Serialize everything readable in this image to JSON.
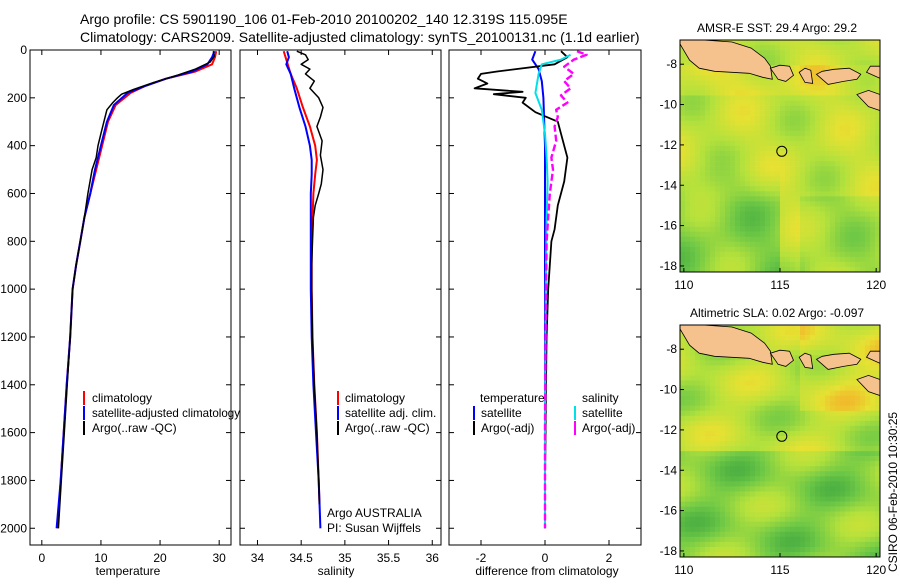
{
  "header": {
    "line1": "Argo profile: CS 5901190_106 01-Feb-2010 20100202_140 12.319S 115.095E",
    "line2": "Climatology: CARS2009. Satellite-adjusted climatology: synTS_20100131.nc (1.1d earlier)"
  },
  "side_stamp": "CSIRO 06-Feb-2010 10:30:25",
  "colors": {
    "climatology": "#ff0000",
    "satellite": "#0000ff",
    "argo": "#000000",
    "salinity_satellite": "#00e0e8",
    "salinity_argo": "#ff00ff",
    "land": "#f5c28e",
    "ocean": "#b4dc3c"
  },
  "chart_data": [
    {
      "type": "line",
      "name": "temperature-profile",
      "xlabel": "temperature",
      "xlim": [
        -2,
        32
      ],
      "ylim": [
        2070,
        0
      ],
      "xticks": [
        0,
        10,
        20,
        30
      ],
      "yticks": [
        0,
        200,
        400,
        600,
        800,
        1000,
        1200,
        1400,
        1600,
        1800,
        2000
      ],
      "legend": [
        "climatology",
        "satellite-adjusted climatology",
        "Argo(..raw -QC)"
      ],
      "series": [
        {
          "name": "climatology",
          "color": "#ff0000",
          "points": [
            [
              29.5,
              5
            ],
            [
              29.3,
              30
            ],
            [
              28.8,
              60
            ],
            [
              26,
              90
            ],
            [
              21,
              120
            ],
            [
              17.5,
              150
            ],
            [
              15,
              180
            ],
            [
              12.5,
              230
            ],
            [
              11.2,
              300
            ],
            [
              10.2,
              400
            ],
            [
              9.2,
              500
            ],
            [
              8.2,
              600
            ],
            [
              7.2,
              700
            ],
            [
              6.5,
              800
            ],
            [
              5.8,
              900
            ],
            [
              5.2,
              1000
            ],
            [
              4.8,
              1200
            ],
            [
              4.2,
              1400
            ],
            [
              3.7,
              1600
            ],
            [
              3.2,
              1800
            ],
            [
              2.7,
              2000
            ]
          ]
        },
        {
          "name": "satellite-adjusted climatology",
          "color": "#0000ff",
          "points": [
            [
              29.2,
              5
            ],
            [
              28.8,
              30
            ],
            [
              28,
              60
            ],
            [
              25.5,
              90
            ],
            [
              21,
              120
            ],
            [
              17.5,
              150
            ],
            [
              14.5,
              180
            ],
            [
              12.2,
              230
            ],
            [
              11,
              300
            ],
            [
              10,
              400
            ],
            [
              9,
              500
            ],
            [
              8.2,
              600
            ],
            [
              7.2,
              700
            ],
            [
              6.5,
              800
            ],
            [
              5.8,
              900
            ],
            [
              5.2,
              1000
            ],
            [
              4.8,
              1200
            ],
            [
              4.2,
              1400
            ],
            [
              3.7,
              1600
            ],
            [
              3.2,
              1800
            ],
            [
              2.5,
              2000
            ]
          ]
        },
        {
          "name": "Argo(..raw -QC)",
          "color": "#000000",
          "points": [
            [
              29,
              5
            ],
            [
              29.2,
              25
            ],
            [
              28.5,
              50
            ],
            [
              26,
              80
            ],
            [
              23,
              105
            ],
            [
              19,
              135
            ],
            [
              15.5,
              165
            ],
            [
              13.5,
              185
            ],
            [
              12.8,
              200
            ],
            [
              12,
              220
            ],
            [
              11,
              250
            ],
            [
              10.5,
              300
            ],
            [
              10,
              350
            ],
            [
              9.5,
              400
            ],
            [
              9.2,
              450
            ],
            [
              8.5,
              500
            ],
            [
              7.8,
              600
            ],
            [
              7.2,
              700
            ],
            [
              6.5,
              800
            ],
            [
              5.8,
              900
            ],
            [
              5.2,
              1000
            ],
            [
              4.8,
              1200
            ],
            [
              4.3,
              1400
            ],
            [
              3.8,
              1600
            ],
            [
              3.3,
              1800
            ],
            [
              2.8,
              2000
            ]
          ]
        }
      ]
    },
    {
      "type": "line",
      "name": "salinity-profile",
      "xlabel": "salinity",
      "xlim": [
        33.8,
        36.1
      ],
      "ylim": [
        2070,
        0
      ],
      "xticks": [
        34,
        34.5,
        35,
        35.5,
        36
      ],
      "legend": [
        "climatology",
        "satellite adj. clim.",
        "Argo(..raw -QC)"
      ],
      "annotation": [
        "Argo AUSTRALIA",
        "PI: Susan Wijffels"
      ],
      "series": [
        {
          "name": "climatology",
          "color": "#ff0000",
          "points": [
            [
              34.3,
              5
            ],
            [
              34.33,
              40
            ],
            [
              34.38,
              100
            ],
            [
              34.45,
              160
            ],
            [
              34.52,
              240
            ],
            [
              34.6,
              320
            ],
            [
              34.66,
              400
            ],
            [
              34.68,
              460
            ],
            [
              34.66,
              520
            ],
            [
              34.64,
              600
            ],
            [
              34.62,
              800
            ],
            [
              34.62,
              1000
            ],
            [
              34.63,
              1200
            ],
            [
              34.65,
              1400
            ],
            [
              34.68,
              1600
            ],
            [
              34.7,
              1800
            ],
            [
              34.71,
              1900
            ]
          ]
        },
        {
          "name": "satellite adj. clim.",
          "color": "#0000ff",
          "points": [
            [
              34.34,
              5
            ],
            [
              34.36,
              30
            ],
            [
              34.33,
              60
            ],
            [
              34.38,
              100
            ],
            [
              34.42,
              160
            ],
            [
              34.48,
              240
            ],
            [
              34.55,
              320
            ],
            [
              34.6,
              400
            ],
            [
              34.62,
              460
            ],
            [
              34.62,
              520
            ],
            [
              34.61,
              600
            ],
            [
              34.61,
              800
            ],
            [
              34.61,
              1000
            ],
            [
              34.62,
              1200
            ],
            [
              34.64,
              1400
            ],
            [
              34.67,
              1600
            ],
            [
              34.7,
              1800
            ],
            [
              34.72,
              2000
            ]
          ]
        },
        {
          "name": "Argo(..raw -QC)",
          "color": "#000000",
          "points": [
            [
              34.45,
              5
            ],
            [
              34.55,
              20
            ],
            [
              34.58,
              40
            ],
            [
              34.5,
              60
            ],
            [
              34.6,
              80
            ],
            [
              34.55,
              100
            ],
            [
              34.65,
              130
            ],
            [
              34.6,
              160
            ],
            [
              34.7,
              200
            ],
            [
              34.75,
              240
            ],
            [
              34.72,
              280
            ],
            [
              34.68,
              320
            ],
            [
              34.74,
              380
            ],
            [
              34.72,
              440
            ],
            [
              34.75,
              500
            ],
            [
              34.73,
              560
            ],
            [
              34.7,
              600
            ],
            [
              34.66,
              650
            ],
            [
              34.64,
              700
            ],
            [
              34.63,
              800
            ],
            [
              34.62,
              900
            ],
            [
              34.62,
              1000
            ],
            [
              34.63,
              1200
            ],
            [
              34.65,
              1400
            ],
            [
              34.68,
              1600
            ],
            [
              34.7,
              1800
            ],
            [
              34.71,
              1900
            ]
          ]
        }
      ]
    },
    {
      "type": "line",
      "name": "difference-profile",
      "xlabel": "difference from climatology",
      "xlim": [
        -3,
        3
      ],
      "ylim": [
        2070,
        0
      ],
      "xticks": [
        -2,
        0,
        2
      ],
      "legend_left": [
        "temperature",
        "satellite",
        "Argo(-adj)"
      ],
      "legend_right": [
        "salinity",
        "satellite",
        "Argo(-adj)"
      ],
      "series": [
        {
          "name": "temperature satellite",
          "color": "#0000ff",
          "points": [
            [
              -0.3,
              5
            ],
            [
              -0.4,
              40
            ],
            [
              -0.2,
              80
            ],
            [
              -0.1,
              130
            ],
            [
              -0.05,
              200
            ],
            [
              0,
              400
            ],
            [
              0,
              800
            ],
            [
              0,
              1200
            ],
            [
              0,
              1600
            ],
            [
              0,
              2000
            ]
          ]
        },
        {
          "name": "temperature Argo(-adj)",
          "color": "#000000",
          "points": [
            [
              0.5,
              5
            ],
            [
              0.7,
              30
            ],
            [
              0.3,
              60
            ],
            [
              -1.5,
              90
            ],
            [
              -2,
              100
            ],
            [
              -2.1,
              120
            ],
            [
              -1.8,
              140
            ],
            [
              -2.2,
              160
            ],
            [
              -0.7,
              175
            ],
            [
              -1.6,
              185
            ],
            [
              -0.6,
              200
            ],
            [
              -0.7,
              220
            ],
            [
              -0.3,
              260
            ],
            [
              0.4,
              300
            ],
            [
              0.5,
              350
            ],
            [
              0.7,
              450
            ],
            [
              0.6,
              550
            ],
            [
              0.4,
              650
            ],
            [
              0.3,
              750
            ],
            [
              0.2,
              800
            ],
            [
              0.15,
              900
            ],
            [
              0.1,
              1000
            ],
            [
              0.05,
              1200
            ],
            [
              0.03,
              1400
            ],
            [
              0.02,
              1600
            ],
            [
              0,
              1800
            ],
            [
              0,
              2000
            ]
          ]
        },
        {
          "name": "salinity satellite",
          "color": "#00e0e8",
          "points": [
            [
              0.8,
              20
            ],
            [
              0.5,
              40
            ],
            [
              -0.1,
              60
            ],
            [
              -0.2,
              100
            ],
            [
              -0.3,
              180
            ],
            [
              -0.1,
              250
            ],
            [
              0,
              350
            ],
            [
              0.05,
              450
            ],
            [
              0.08,
              550
            ],
            [
              0.05,
              700
            ],
            [
              0.03,
              900
            ],
            [
              0.02,
              1100
            ],
            [
              0.01,
              1300
            ],
            [
              0,
              1500
            ],
            [
              0,
              2000
            ]
          ]
        },
        {
          "name": "salinity Argo(-adj)",
          "color": "#ff00ff",
          "points": [
            [
              1,
              5
            ],
            [
              1.3,
              20
            ],
            [
              0.9,
              40
            ],
            [
              0.6,
              70
            ],
            [
              0.9,
              100
            ],
            [
              0.6,
              130
            ],
            [
              0.8,
              160
            ],
            [
              0.5,
              190
            ],
            [
              0.7,
              220
            ],
            [
              0.35,
              250
            ],
            [
              0.4,
              280
            ],
            [
              0.3,
              320
            ],
            [
              0.35,
              380
            ],
            [
              0.2,
              450
            ],
            [
              0.25,
              500
            ],
            [
              0.15,
              600
            ],
            [
              0.1,
              700
            ],
            [
              0.05,
              800
            ],
            [
              0.03,
              1000
            ],
            [
              0.02,
              1200
            ],
            [
              0.01,
              1400
            ],
            [
              0,
              1600
            ],
            [
              0,
              2000
            ]
          ]
        }
      ]
    },
    {
      "type": "heatmap",
      "name": "sst-map",
      "title": "AMSR-E SST: 29.4 Argo: 29.2",
      "xlim": [
        109.8,
        120.2
      ],
      "ylim": [
        -18.3,
        -6.8
      ],
      "xticks": [
        110,
        115,
        120
      ],
      "yticks": [
        -8,
        -10,
        -12,
        -14,
        -16,
        -18
      ],
      "argo_position": [
        115.095,
        -12.319
      ]
    },
    {
      "type": "heatmap",
      "name": "sla-map",
      "title": "Altimetric SLA: 0.02 Argo: -0.097",
      "xlim": [
        109.8,
        120.2
      ],
      "ylim": [
        -18.3,
        -6.8
      ],
      "xticks": [
        110,
        115,
        120
      ],
      "yticks": [
        -8,
        -10,
        -12,
        -14,
        -16,
        -18
      ],
      "argo_position": [
        115.095,
        -12.319
      ]
    }
  ]
}
